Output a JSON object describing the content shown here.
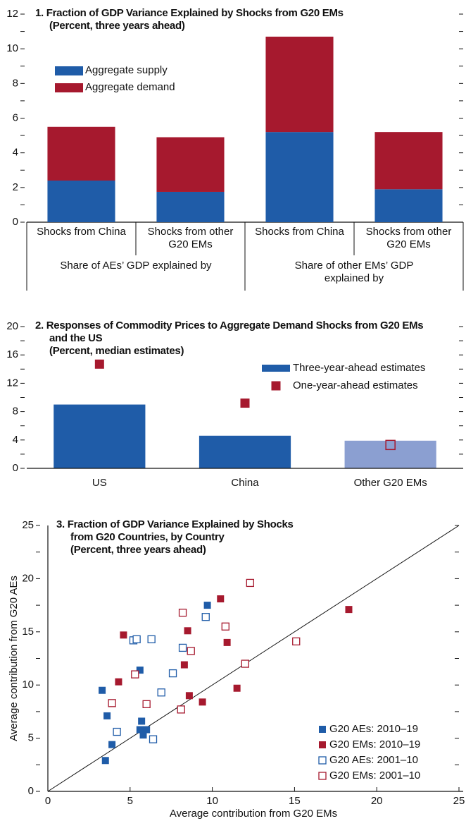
{
  "chart_data": [
    {
      "type": "stacked_bar",
      "title": "1. Fraction of GDP Variance Explained by Shocks from G20 EMs",
      "subtitle": "(Percent, three years ahead)",
      "categories": [
        "Shocks from China",
        "Shocks from other G20 EMs",
        "Shocks from China",
        "Shocks from other G20 EMs"
      ],
      "groups": [
        "Share of AEs’ GDP explained by",
        "Share of other EMs’ GDP explained by"
      ],
      "series": [
        {
          "name": "Aggregate supply",
          "color": "#1f5ca8",
          "values": [
            2.4,
            1.75,
            5.2,
            1.9
          ]
        },
        {
          "name": "Aggregate demand",
          "color": "#a6192e",
          "values": [
            3.1,
            3.15,
            5.5,
            3.3
          ]
        }
      ],
      "ylim": [
        0,
        12
      ],
      "yticks": [
        0,
        2,
        4,
        6,
        8,
        10,
        12
      ],
      "yticks_minor": [
        1,
        3,
        5,
        7,
        9,
        11
      ]
    },
    {
      "type": "bar_points",
      "title": "2. Responses of Commodity Prices to Aggregate Demand Shocks from G20 EMs and the US",
      "subtitle": "(Percent, median estimates)",
      "categories": [
        "US",
        "China",
        "Other G20 EMs"
      ],
      "series": [
        {
          "name": "Three-year-ahead estimates",
          "kind": "bar",
          "color": "#1f5ca8",
          "colors": [
            "#1f5ca8",
            "#1f5ca8",
            "#8b9fd1"
          ],
          "values": [
            9.0,
            4.6,
            3.9
          ]
        },
        {
          "name": "One-year-ahead estimates",
          "kind": "points",
          "color": "#a6192e",
          "hollow": [
            false,
            false,
            true
          ],
          "values": [
            14.7,
            9.2,
            3.3
          ]
        }
      ],
      "ylim": [
        0,
        20
      ],
      "yticks": [
        0,
        4,
        8,
        12,
        16,
        20
      ],
      "yticks_minor": [
        2,
        6,
        10,
        14,
        18
      ]
    },
    {
      "type": "scatter",
      "title": "3. Fraction of GDP Variance Explained by Shocks from G20 Countries, by Country",
      "subtitle": "(Percent, three years ahead)",
      "xlabel": "Average contribution from G20 EMs",
      "ylabel": "Average contribution from G20 AEs",
      "legend": "lower right",
      "series": [
        {
          "name": "G20 AEs: 2010–19",
          "color": "#1f5ca8",
          "filled": true,
          "x": [
            3.3,
            3.6,
            3.9,
            3.5,
            5.6,
            5.7,
            5.6,
            6.0,
            5.8,
            9.7
          ],
          "values": [
            9.5,
            7.1,
            4.4,
            2.9,
            11.4,
            6.6,
            5.8,
            5.8,
            5.3,
            17.5
          ]
        },
        {
          "name": "G20 EMs: 2010–19",
          "color": "#a6192e",
          "filled": true,
          "x": [
            4.6,
            4.3,
            8.5,
            8.3,
            8.6,
            9.4,
            10.5,
            10.9,
            11.5,
            18.3
          ],
          "values": [
            14.7,
            10.3,
            15.1,
            11.9,
            9.0,
            8.4,
            18.1,
            14.0,
            9.7,
            17.1
          ]
        },
        {
          "name": "G20 AEs: 2001–10",
          "color": "#1f5ca8",
          "filled": false,
          "x": [
            4.2,
            5.2,
            5.4,
            6.3,
            6.4,
            6.9,
            7.6,
            8.2,
            9.6
          ],
          "values": [
            5.6,
            14.2,
            14.3,
            14.3,
            4.9,
            9.3,
            11.1,
            13.5,
            16.4
          ]
        },
        {
          "name": "G20 EMs: 2001–10",
          "color": "#a6192e",
          "filled": false,
          "x": [
            3.9,
            5.3,
            6.0,
            8.2,
            8.7,
            8.1,
            10.8,
            12.0,
            12.3,
            15.1
          ],
          "values": [
            8.3,
            11.0,
            8.2,
            16.8,
            13.2,
            7.7,
            15.5,
            12.0,
            19.6,
            14.1
          ]
        }
      ],
      "xlim": [
        0,
        25
      ],
      "xticks": [
        0,
        5,
        10,
        15,
        20,
        25
      ],
      "ylim": [
        0,
        25
      ],
      "yticks": [
        0,
        5,
        10,
        15,
        20,
        25
      ],
      "yticks_minor": [
        2.5,
        7.5,
        12.5,
        17.5,
        22.5
      ]
    }
  ]
}
